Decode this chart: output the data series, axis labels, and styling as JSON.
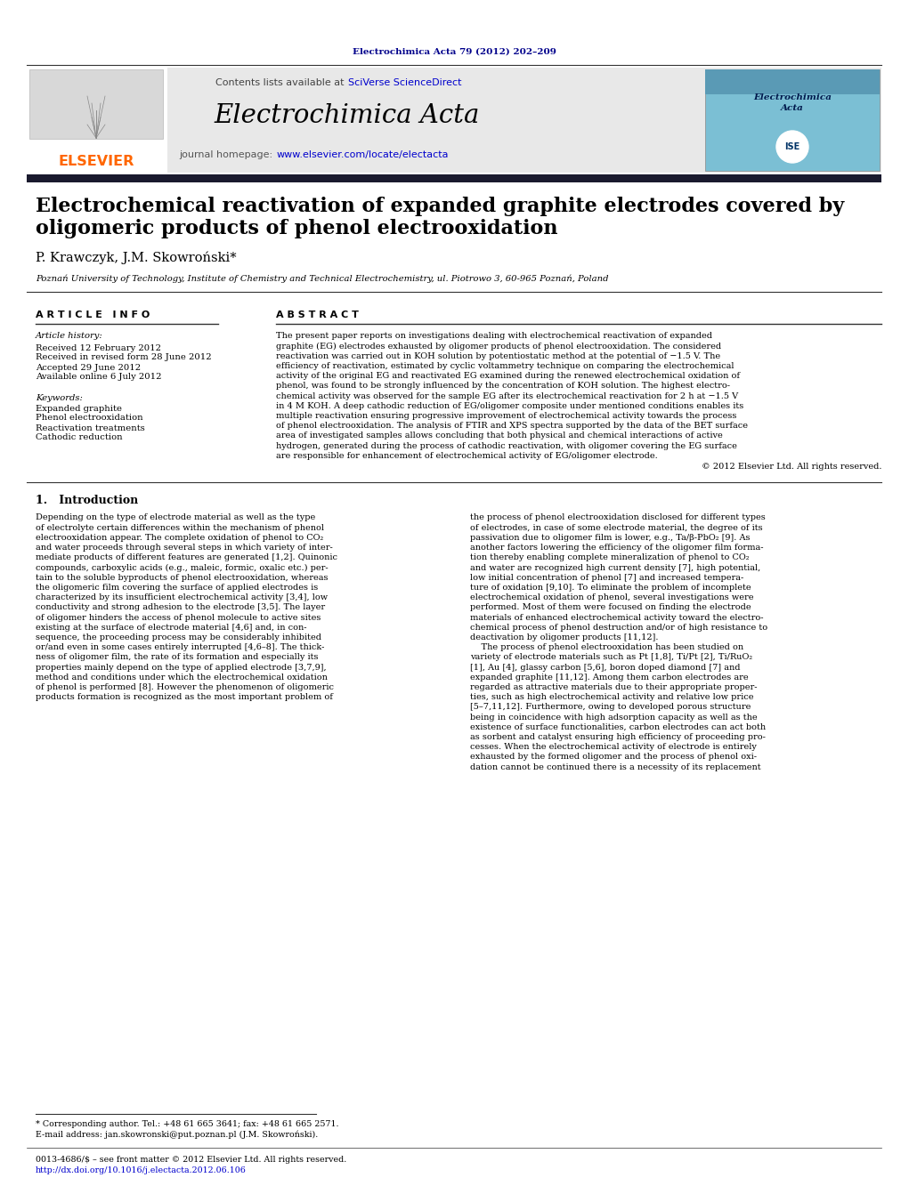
{
  "page_width": 10.21,
  "page_height": 13.51,
  "background_color": "#ffffff",
  "top_journal_text": "Electrochimica Acta 79 (2012) 202–209",
  "top_journal_color": "#00008B",
  "header_bg_color": "#e8e8e8",
  "header_title": "Electrochimica Acta",
  "header_subtitle_prefix": "journal homepage: ",
  "header_url": "www.elsevier.com/locate/electacta",
  "elsevier_color": "#FF6600",
  "authors": "P. Krawczyk, J.M. Skowroński*",
  "affiliation": "Poznań University of Technology, Institute of Chemistry and Technical Electrochemistry, ul. Piotrowo 3, 60-965 Poznań, Poland",
  "article_info_title": "A R T I C L E   I N F O",
  "abstract_title": "A B S T R A C T",
  "article_history_label": "Article history:",
  "received": "Received 12 February 2012",
  "revised": "Received in revised form 28 June 2012",
  "accepted": "Accepted 29 June 2012",
  "available": "Available online 6 July 2012",
  "keywords_label": "Keywords:",
  "keyword1": "Expanded graphite",
  "keyword2": "Phenol electrooxidation",
  "keyword3": "Reactivation treatments",
  "keyword4": "Cathodic reduction",
  "copyright": "© 2012 Elsevier Ltd. All rights reserved.",
  "section1_title": "1.   Introduction",
  "footnote_star": "* Corresponding author. Tel.: +48 61 665 3641; fax: +48 61 665 2571.",
  "footnote_email": "E-mail address: jan.skowronski@put.poznan.pl (J.M. Skowroński).",
  "footnote_issn": "0013-4686/$ – see front matter © 2012 Elsevier Ltd. All rights reserved.",
  "footnote_doi": "http://dx.doi.org/10.1016/j.electacta.2012.06.106",
  "url_color": "#0000CD",
  "dark_bar_color": "#1a1a2e",
  "contents_text": "Contents lists available at ",
  "sciverse_text": "SciVerse ScienceDirect",
  "col1_text": [
    "Depending on the type of electrode material as well as the type",
    "of electrolyte certain differences within the mechanism of phenol",
    "electrooxidation appear. The complete oxidation of phenol to CO₂",
    "and water proceeds through several steps in which variety of inter-",
    "mediate products of different features are generated [1,2]. Quinonic",
    "compounds, carboxylic acids (e.g., maleic, formic, oxalic etc.) per-",
    "tain to the soluble byproducts of phenol electrooxidation, whereas",
    "the oligomeric film covering the surface of applied electrodes is",
    "characterized by its insufficient electrochemical activity [3,4], low",
    "conductivity and strong adhesion to the electrode [3,5]. The layer",
    "of oligomer hinders the access of phenol molecule to active sites",
    "existing at the surface of electrode material [4,6] and, in con-",
    "sequence, the proceeding process may be considerably inhibited",
    "or/and even in some cases entirely interrupted [4,6–8]. The thick-",
    "ness of oligomer film, the rate of its formation and especially its",
    "properties mainly depend on the type of applied electrode [3,7,9],",
    "method and conditions under which the electrochemical oxidation",
    "of phenol is performed [8]. However the phenomenon of oligomeric",
    "products formation is recognized as the most important problem of"
  ],
  "col2_text": [
    "the process of phenol electrooxidation disclosed for different types",
    "of electrodes, in case of some electrode material, the degree of its",
    "passivation due to oligomer film is lower, e.g., Ta/β-PbO₂ [9]. As",
    "another factors lowering the efficiency of the oligomer film forma-",
    "tion thereby enabling complete mineralization of phenol to CO₂",
    "and water are recognized high current density [7], high potential,",
    "low initial concentration of phenol [7] and increased tempera-",
    "ture of oxidation [9,10]. To eliminate the problem of incomplete",
    "electrochemical oxidation of phenol, several investigations were",
    "performed. Most of them were focused on finding the electrode",
    "materials of enhanced electrochemical activity toward the electro-",
    "chemical process of phenol destruction and/or of high resistance to",
    "deactivation by oligomer products [11,12].",
    "    The process of phenol electrooxidation has been studied on",
    "variety of electrode materials such as Pt [1,8], Ti/Pt [2], Ti/RuO₂",
    "[1], Au [4], glassy carbon [5,6], boron doped diamond [7] and",
    "expanded graphite [11,12]. Among them carbon electrodes are",
    "regarded as attractive materials due to their appropriate proper-",
    "ties, such as high electrochemical activity and relative low price",
    "[5–7,11,12]. Furthermore, owing to developed porous structure",
    "being in coincidence with high adsorption capacity as well as the",
    "existence of surface functionalities, carbon electrodes can act both",
    "as sorbent and catalyst ensuring high efficiency of proceeding pro-",
    "cesses. When the electrochemical activity of electrode is entirely",
    "exhausted by the formed oligomer and the process of phenol oxi-",
    "dation cannot be continued there is a necessity of its replacement"
  ],
  "abstract_lines": [
    "The present paper reports on investigations dealing with electrochemical reactivation of expanded",
    "graphite (EG) electrodes exhausted by oligomer products of phenol electrooxidation. The considered",
    "reactivation was carried out in KOH solution by potentiostatic method at the potential of −1.5 V. The",
    "efficiency of reactivation, estimated by cyclic voltammetry technique on comparing the electrochemical",
    "activity of the original EG and reactivated EG examined during the renewed electrochemical oxidation of",
    "phenol, was found to be strongly influenced by the concentration of KOH solution. The highest electro-",
    "chemical activity was observed for the sample EG after its electrochemical reactivation for 2 h at −1.5 V",
    "in 4 M KOH. A deep cathodic reduction of EG/oligomer composite under mentioned conditions enables its",
    "multiple reactivation ensuring progressive improvement of electrochemical activity towards the process",
    "of phenol electrooxidation. The analysis of FTIR and XPS spectra supported by the data of the BET surface",
    "area of investigated samples allows concluding that both physical and chemical interactions of active",
    "hydrogen, generated during the process of cathodic reactivation, with oligomer covering the EG surface",
    "are responsible for enhancement of electrochemical activity of EG/oligomer electrode."
  ],
  "title_line1": "Electrochemical reactivation of expanded graphite electrodes covered by",
  "title_line2": "oligomeric products of phenol electrooxidation"
}
